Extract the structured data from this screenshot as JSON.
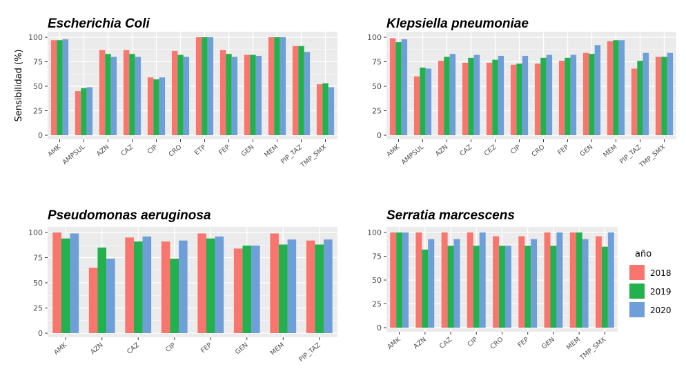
{
  "chart_data": [
    {
      "type": "bar",
      "title": "Escherichia Coli",
      "ylabel": "Sensibilidad (%)",
      "ylim": [
        0,
        100
      ],
      "yticks": [
        0,
        25,
        50,
        75,
        100
      ],
      "categories": [
        "AMK",
        "AMPSUL",
        "AZN",
        "CAZ",
        "CIP",
        "CRO",
        "ETP",
        "FEP",
        "GEN",
        "MEM",
        "PIP_TAZ",
        "TMP_SMX"
      ],
      "series": [
        {
          "name": "2018",
          "values": [
            97,
            45,
            87,
            87,
            59,
            86,
            100,
            87,
            82,
            100,
            91,
            52
          ]
        },
        {
          "name": "2019",
          "values": [
            97,
            48,
            83,
            83,
            57,
            82,
            100,
            83,
            82,
            100,
            91,
            53
          ]
        },
        {
          "name": "2020",
          "values": [
            98,
            49,
            80,
            80,
            59,
            80,
            100,
            80,
            81,
            100,
            85,
            49
          ]
        }
      ]
    },
    {
      "type": "bar",
      "title": "Klepsiella pneumoniae",
      "ylabel": "",
      "ylim": [
        0,
        100
      ],
      "yticks": [
        0,
        25,
        50,
        75,
        100
      ],
      "categories": [
        "AMK",
        "AMPSUL",
        "AZN",
        "CAZ",
        "CEZ",
        "CIP",
        "CRO",
        "FEP",
        "GEN",
        "MEM",
        "PIP_TAZ",
        "TMP_SMX"
      ],
      "series": [
        {
          "name": "2018",
          "values": [
            99,
            60,
            76,
            74,
            74,
            72,
            73,
            76,
            84,
            96,
            68,
            80
          ]
        },
        {
          "name": "2019",
          "values": [
            95,
            69,
            80,
            79,
            77,
            73,
            79,
            79,
            83,
            97,
            76,
            80
          ]
        },
        {
          "name": "2020",
          "values": [
            98,
            68,
            83,
            82,
            81,
            81,
            82,
            82,
            92,
            97,
            84,
            84
          ]
        }
      ]
    },
    {
      "type": "bar",
      "title": "Pseudomonas aeruginosa",
      "ylabel": "",
      "ylim": [
        0,
        100
      ],
      "yticks": [
        0,
        25,
        50,
        75,
        100
      ],
      "categories": [
        "AMK",
        "AZN",
        "CAZ",
        "CIP",
        "FEP",
        "GEN",
        "MEM",
        "PIP_TAZ"
      ],
      "series": [
        {
          "name": "2018",
          "values": [
            100,
            65,
            95,
            91,
            99,
            84,
            99,
            92
          ]
        },
        {
          "name": "2019",
          "values": [
            94,
            85,
            91,
            74,
            94,
            87,
            88,
            88
          ]
        },
        {
          "name": "2020",
          "values": [
            99,
            74,
            96,
            92,
            96,
            87,
            93,
            93
          ]
        }
      ]
    },
    {
      "type": "bar",
      "title": "Serratia marcescens",
      "ylabel": "",
      "ylim": [
        0,
        100
      ],
      "yticks": [
        0,
        25,
        50,
        75,
        100
      ],
      "categories": [
        "AMK",
        "AZN",
        "CAZ",
        "CIP",
        "CRO",
        "FEP",
        "GEN",
        "MEM",
        "TMP_SMX"
      ],
      "series": [
        {
          "name": "2018",
          "values": [
            100,
            100,
            100,
            100,
            96,
            96,
            100,
            100,
            96
          ]
        },
        {
          "name": "2019",
          "values": [
            100,
            82,
            86,
            86,
            86,
            86,
            86,
            100,
            85
          ]
        },
        {
          "name": "2020",
          "values": [
            100,
            93,
            93,
            100,
            86,
            93,
            100,
            93,
            100
          ]
        }
      ]
    }
  ],
  "legend": {
    "title": "año",
    "position": "right",
    "items": [
      {
        "label": "2018",
        "color": "#F8766D"
      },
      {
        "label": "2019",
        "color": "#22B14C"
      },
      {
        "label": "2020",
        "color": "#6F9FD8"
      }
    ]
  },
  "style": {
    "panel_bg": "#EBEBEB",
    "grid_major": "#FFFFFF"
  }
}
